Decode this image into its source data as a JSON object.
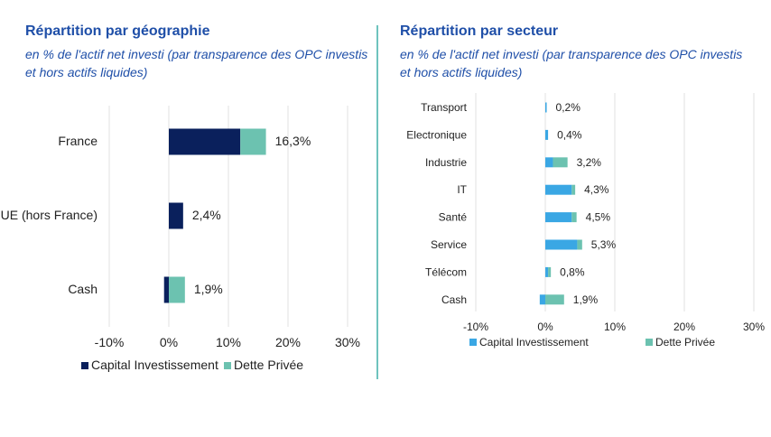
{
  "colors": {
    "title": "#1f4fa8",
    "grid": "#e2e2e2",
    "divider": "#6ec3be"
  },
  "chart_data": [
    {
      "type": "bar",
      "orientation": "horizontal",
      "stacked": true,
      "title": "Répartition par géographie",
      "subtitle": "en % de l'actif net investi (par transparence des OPC investis et hors actifs liquides)",
      "categories": [
        "France",
        "UE (hors France)",
        "Cash"
      ],
      "series": [
        {
          "name": "Capital Investissement",
          "color": "#0a205c",
          "values": [
            12.0,
            2.4,
            -0.8
          ]
        },
        {
          "name": "Dette Privée",
          "color": "#6cc2b0",
          "values": [
            4.3,
            0,
            2.7
          ]
        }
      ],
      "data_labels": [
        "16,3%",
        "2,4%",
        "1,9%"
      ],
      "xlim": [
        -10,
        30
      ],
      "xticks": [
        "-10%",
        "0%",
        "10%",
        "20%",
        "30%"
      ],
      "grid": true,
      "legend": "bottom"
    },
    {
      "type": "bar",
      "orientation": "horizontal",
      "stacked": true,
      "title": "Répartition par secteur",
      "subtitle": "en % de l'actif net investi (par transparence des OPC investis et hors actifs liquides)",
      "categories": [
        "Transport",
        "Electronique",
        "Industrie",
        "IT",
        "Santé",
        "Service",
        "Télécom",
        "Cash"
      ],
      "series": [
        {
          "name": "Capital Investissement",
          "color": "#3aa7e4",
          "values": [
            0.2,
            0.4,
            1.1,
            3.8,
            3.8,
            4.6,
            0.4,
            -0.8
          ]
        },
        {
          "name": "Dette Privée",
          "color": "#6cc2b0",
          "values": [
            0,
            0,
            2.1,
            0.5,
            0.7,
            0.7,
            0.4,
            2.7
          ]
        }
      ],
      "data_labels": [
        "0,2%",
        "0,4%",
        "3,2%",
        "4,3%",
        "4,5%",
        "5,3%",
        "0,8%",
        "1,9%"
      ],
      "xlim": [
        -10,
        30
      ],
      "xticks": [
        "-10%",
        "0%",
        "10%",
        "20%",
        "30%"
      ],
      "grid": true,
      "legend": "bottom"
    }
  ]
}
